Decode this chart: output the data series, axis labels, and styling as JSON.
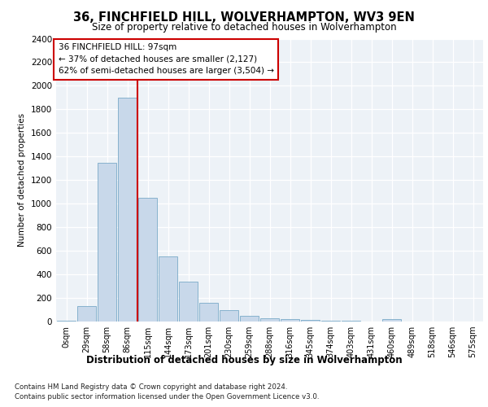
{
  "title1": "36, FINCHFIELD HILL, WOLVERHAMPTON, WV3 9EN",
  "title2": "Size of property relative to detached houses in Wolverhampton",
  "xlabel": "Distribution of detached houses by size in Wolverhampton",
  "ylabel": "Number of detached properties",
  "footer1": "Contains HM Land Registry data © Crown copyright and database right 2024.",
  "footer2": "Contains public sector information licensed under the Open Government Licence v3.0.",
  "annotation_line1": "36 FINCHFIELD HILL: 97sqm",
  "annotation_line2": "← 37% of detached houses are smaller (2,127)",
  "annotation_line3": "62% of semi-detached houses are larger (3,504) →",
  "bar_color": "#c8d8ea",
  "bar_edge_color": "#7aaac8",
  "vline_color": "#cc0000",
  "annotation_box_edge": "#cc0000",
  "categories": [
    "0sqm",
    "29sqm",
    "58sqm",
    "86sqm",
    "115sqm",
    "144sqm",
    "173sqm",
    "201sqm",
    "230sqm",
    "259sqm",
    "288sqm",
    "316sqm",
    "345sqm",
    "374sqm",
    "403sqm",
    "431sqm",
    "460sqm",
    "489sqm",
    "518sqm",
    "546sqm",
    "575sqm"
  ],
  "bar_values": [
    10,
    130,
    1350,
    1900,
    1050,
    550,
    340,
    160,
    100,
    50,
    30,
    22,
    15,
    10,
    5,
    3,
    20,
    2,
    0,
    2,
    0
  ],
  "ylim": [
    0,
    2400
  ],
  "yticks": [
    0,
    200,
    400,
    600,
    800,
    1000,
    1200,
    1400,
    1600,
    1800,
    2000,
    2200,
    2400
  ],
  "vline_x": 3.5,
  "plot_bg_color": "#edf2f7"
}
